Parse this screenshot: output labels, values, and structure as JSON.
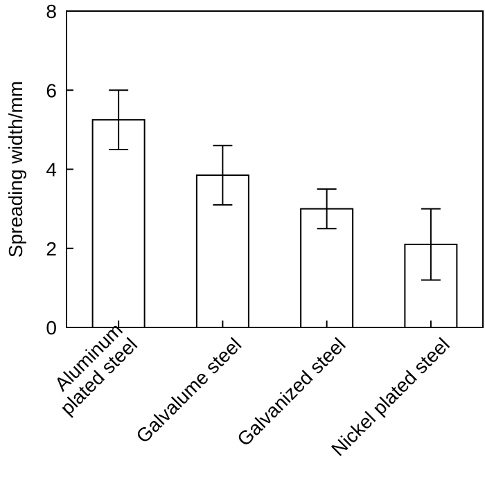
{
  "chart_data": {
    "type": "bar",
    "title": "",
    "xlabel": "",
    "ylabel": "Spreading width/mm",
    "ylim": [
      0,
      8
    ],
    "yticks": [
      0,
      2,
      4,
      6,
      8
    ],
    "grid": false,
    "categories": [
      [
        "Aluminum",
        "plated steel"
      ],
      [
        "Galvalume steel"
      ],
      [
        "Galvanized steel"
      ],
      [
        "Nickel plated steel"
      ]
    ],
    "values": [
      5.25,
      3.85,
      3.0,
      2.1
    ],
    "error_low": [
      4.5,
      3.1,
      2.5,
      1.2
    ],
    "error_high": [
      6.0,
      4.6,
      3.5,
      3.0
    ]
  }
}
